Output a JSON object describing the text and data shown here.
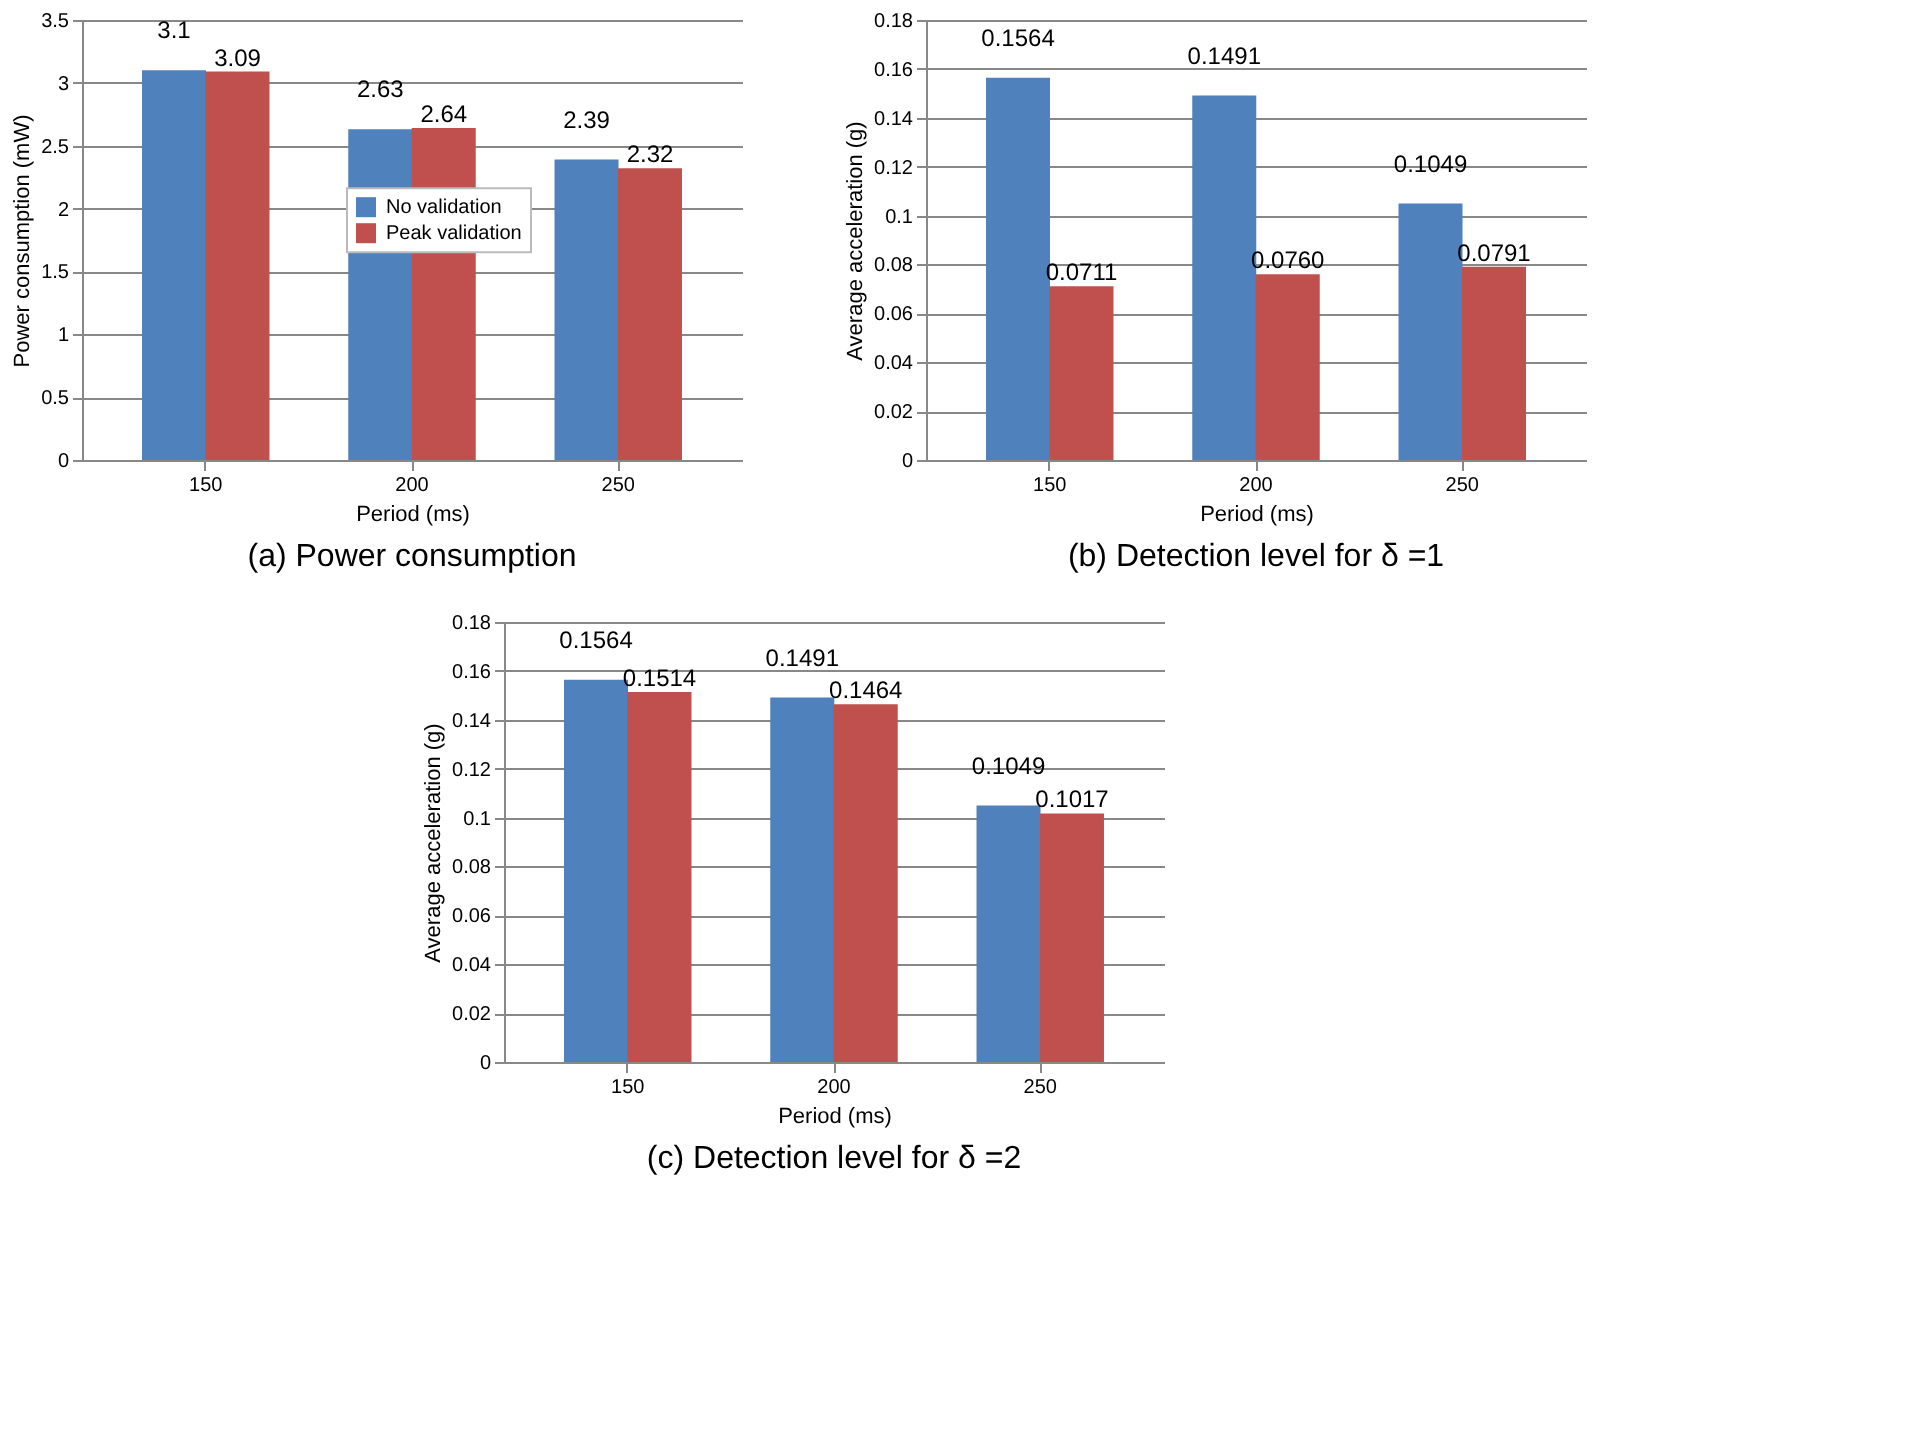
{
  "chart_data": [
    {
      "type": "bar",
      "title": "(a)  Power consumption",
      "xlabel": "Period (ms)",
      "ylabel": "Power consumption (mW)",
      "categories": [
        "150",
        "200",
        "250"
      ],
      "ylim": [
        0,
        3.5
      ],
      "yticks": [
        0,
        0.5,
        1,
        1.5,
        2,
        2.5,
        3,
        3.5
      ],
      "grid": "y",
      "legend": "center",
      "series": [
        {
          "name": "No validation",
          "color": "#4f81bd",
          "values": [
            3.1,
            2.63,
            2.39
          ],
          "value_labels": [
            "3.1",
            "2.63",
            "2.39"
          ]
        },
        {
          "name": "Peak validation",
          "color": "#c0504d",
          "values": [
            3.09,
            2.64,
            2.32
          ],
          "value_labels": [
            "3.09",
            "2.64",
            "2.32"
          ]
        }
      ]
    },
    {
      "type": "bar",
      "title": "(b)  Detection level for δ =1",
      "xlabel": "Period (ms)",
      "ylabel": "Average acceleration (g)",
      "categories": [
        "150",
        "200",
        "250"
      ],
      "ylim": [
        0,
        0.18
      ],
      "yticks": [
        0,
        0.02,
        0.04,
        0.06,
        0.08,
        0.1,
        0.12,
        0.14,
        0.16,
        0.18
      ],
      "grid": "y",
      "series": [
        {
          "color": "#4f81bd",
          "values": [
            0.1564,
            0.1491,
            0.1049
          ],
          "value_labels": [
            "0.1564",
            "0.1491",
            "0.1049"
          ]
        },
        {
          "color": "#c0504d",
          "values": [
            0.0711,
            0.076,
            0.0791
          ],
          "value_labels": [
            "0.0711",
            "0.0760",
            "0.0791"
          ]
        }
      ]
    },
    {
      "type": "bar",
      "title": "(c)  Detection level for δ =2",
      "xlabel": "Period (ms)",
      "ylabel": "Average acceleration (g)",
      "categories": [
        "150",
        "200",
        "250"
      ],
      "ylim": [
        0,
        0.18
      ],
      "yticks": [
        0,
        0.02,
        0.04,
        0.06,
        0.08,
        0.1,
        0.12,
        0.14,
        0.16,
        0.18
      ],
      "grid": "y",
      "series": [
        {
          "color": "#4f81bd",
          "values": [
            0.1564,
            0.1491,
            0.1049
          ],
          "value_labels": [
            "0.1564",
            "0.1491",
            "0.1049"
          ]
        },
        {
          "color": "#c0504d",
          "values": [
            0.1514,
            0.1464,
            0.1017
          ],
          "value_labels": [
            "0.1514",
            "0.1464",
            "0.1017"
          ]
        }
      ]
    }
  ]
}
